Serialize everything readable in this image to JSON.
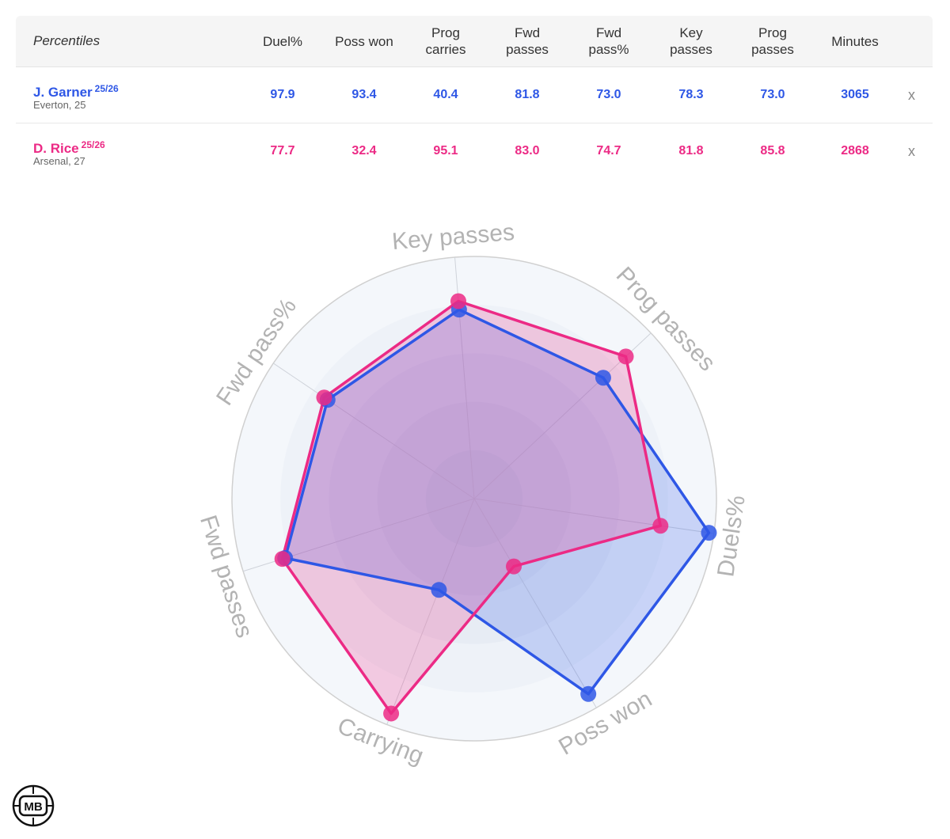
{
  "table": {
    "header_label": "Percentiles",
    "columns": [
      "Duel%",
      "Poss won",
      "Prog carries",
      "Fwd passes",
      "Fwd pass%",
      "Key passes",
      "Prog passes",
      "Minutes"
    ],
    "remove_symbol": "x",
    "players": [
      {
        "name": "J. Garner",
        "season": "25/26",
        "club": "Everton, 25",
        "color": "#2e57e6",
        "values": [
          "97.9",
          "93.4",
          "40.4",
          "81.8",
          "73.0",
          "78.3",
          "73.0",
          "3065"
        ]
      },
      {
        "name": "D. Rice",
        "season": "25/26",
        "club": "Arsenal, 27",
        "color": "#ec2a85",
        "values": [
          "77.7",
          "32.4",
          "95.1",
          "83.0",
          "74.7",
          "81.8",
          "85.8",
          "2868"
        ]
      }
    ]
  },
  "chart_data": {
    "type": "radar",
    "axes": [
      "Key passes",
      "Prog passes",
      "Duels%",
      "Poss won",
      "Carrying",
      "Fwd passes",
      "Fwd pass%"
    ],
    "range": [
      0,
      100
    ],
    "series": [
      {
        "name": "J. Garner",
        "color": "#2e57e6",
        "values": [
          78.3,
          73.0,
          97.9,
          93.4,
          40.4,
          81.8,
          73.0
        ]
      },
      {
        "name": "D. Rice",
        "color": "#ec2a85",
        "values": [
          81.8,
          85.8,
          77.7,
          32.4,
          95.1,
          83.0,
          74.7
        ]
      }
    ]
  },
  "logo": {
    "text": "MB",
    "icon": "mb-logo-icon"
  }
}
